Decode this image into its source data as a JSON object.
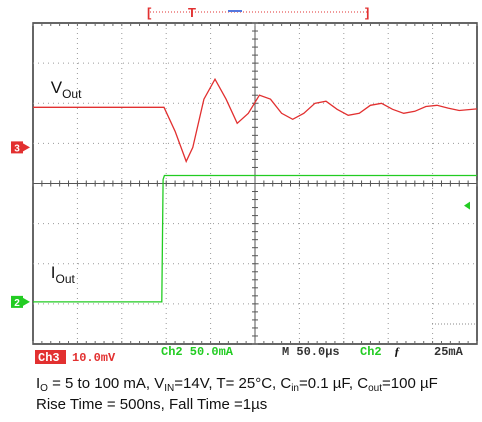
{
  "chart_data": {
    "type": "line",
    "instrument": "oscilloscope",
    "trigger_bar": {
      "left_bracket": "[",
      "marker": "T",
      "right_bracket": "]"
    },
    "x_range": [
      0,
      10
    ],
    "y_range": [
      -4,
      4
    ],
    "series": [
      {
        "name": "V_Out",
        "label": {
          "main": "V",
          "sub": "Out"
        },
        "channel": "3",
        "color": "#e23030",
        "ground_div": 0.9,
        "x": [
          0.0,
          1.5,
          2.95,
          3.2,
          3.45,
          3.6,
          3.85,
          4.1,
          4.35,
          4.6,
          4.85,
          5.1,
          5.35,
          5.6,
          5.85,
          6.1,
          6.35,
          6.6,
          6.85,
          7.1,
          7.35,
          7.6,
          7.85,
          8.1,
          8.35,
          8.6,
          8.85,
          9.1,
          9.35,
          9.6,
          10.0
        ],
        "y": [
          1.9,
          1.9,
          1.9,
          1.3,
          0.55,
          0.9,
          2.1,
          2.6,
          2.1,
          1.5,
          1.75,
          2.2,
          2.1,
          1.75,
          1.6,
          1.75,
          2.0,
          2.05,
          1.85,
          1.7,
          1.75,
          1.95,
          2.0,
          1.85,
          1.75,
          1.8,
          1.92,
          1.95,
          1.88,
          1.82,
          1.86
        ]
      },
      {
        "name": "I_Out",
        "label": {
          "main": "I",
          "sub": "Out"
        },
        "channel": "2",
        "color": "#22cc22",
        "ground_div": -2.95,
        "x": [
          0.0,
          1.5,
          2.9,
          2.93,
          2.96,
          10.0
        ],
        "y": [
          -2.95,
          -2.95,
          -2.95,
          0.1,
          0.2,
          0.2
        ]
      }
    ],
    "status": {
      "ch3": "Ch3",
      "ch3_scale": "10.0mV",
      "ch2_scale": "Ch2  50.0mA",
      "timebase": "M 50.0µs",
      "trigger_src": "Ch2",
      "trigger_slope": "ƒ",
      "trigger_level": "25mA"
    }
  },
  "caption": {
    "line1": {
      "io_main": "I",
      "io_sub": "O",
      "io_text": " = 5 to 100 mA, V",
      "vin_sub": "IN",
      "vin_text": "=14V, T= 25°C, C",
      "cin_sub": "in",
      "cin_text": "=0.1 µF, C",
      "cout_sub": "out",
      "cout_text": "=100 µF"
    },
    "line2": "Rise Time = 500ns,  Fall Time =1µs"
  }
}
